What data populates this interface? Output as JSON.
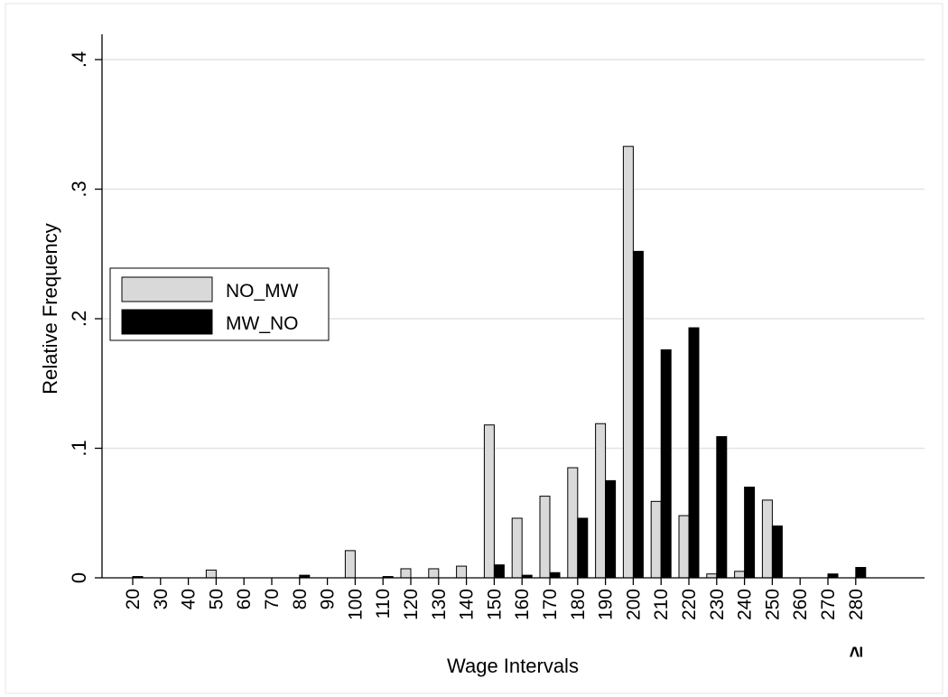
{
  "chart_data": {
    "type": "bar",
    "xlabel": "Wage Intervals",
    "ylabel": "Relative Frequency",
    "ylim": [
      0,
      0.4
    ],
    "yticks": [
      {
        "value": 0,
        "label": "0"
      },
      {
        "value": 0.1,
        "label": ".1"
      },
      {
        "value": 0.2,
        "label": ".2"
      },
      {
        "value": 0.3,
        "label": ".3"
      },
      {
        "value": 0.4,
        "label": ".4"
      }
    ],
    "categories": [
      "20",
      "30",
      "40",
      "50",
      "60",
      "70",
      "80",
      "90",
      "100",
      "110",
      "120",
      "130",
      "140",
      "150",
      "160",
      "170",
      "180",
      "190",
      "200",
      "210",
      "220",
      "230",
      "240",
      "250",
      "260",
      "270",
      "280"
    ],
    "last_category_marker": "≥",
    "grid": true,
    "legend_position": "left-middle",
    "series": [
      {
        "name": "NO_MW",
        "color": "#d9d9d9",
        "values": [
          0,
          0,
          0,
          0.006,
          0,
          0,
          0,
          0,
          0.021,
          0,
          0.007,
          0.007,
          0.009,
          0.118,
          0.046,
          0.063,
          0.085,
          0.119,
          0.333,
          0.059,
          0.048,
          0.003,
          0.005,
          0.06,
          0,
          0,
          0
        ]
      },
      {
        "name": "MW_NO",
        "color": "#000000",
        "values": [
          0.001,
          0,
          0,
          0,
          0,
          0,
          0.002,
          0,
          0,
          0.001,
          0,
          0,
          0,
          0.01,
          0.002,
          0.004,
          0.046,
          0.075,
          0.252,
          0.176,
          0.193,
          0.109,
          0.07,
          0.04,
          0,
          0.003,
          0.008
        ]
      }
    ]
  }
}
